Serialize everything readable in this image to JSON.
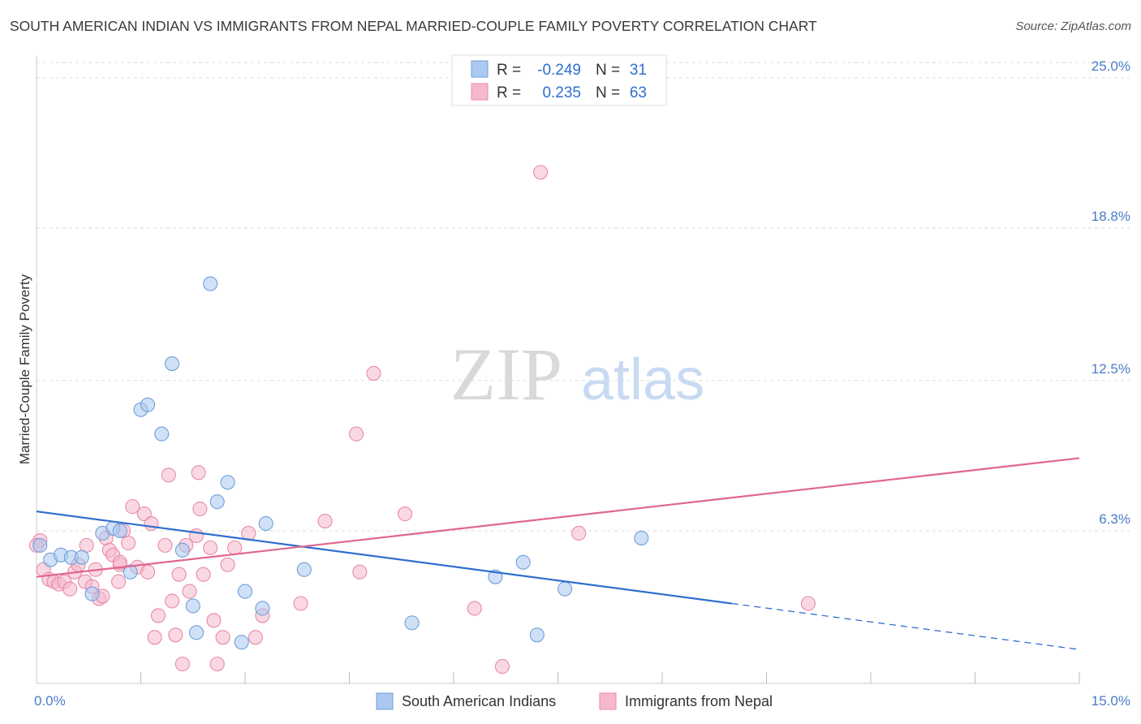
{
  "title": "SOUTH AMERICAN INDIAN VS IMMIGRANTS FROM NEPAL MARRIED-COUPLE FAMILY POVERTY CORRELATION CHART",
  "source": "Source: ZipAtlas.com",
  "watermark": {
    "zip": "ZIP",
    "atlas": "atlas"
  },
  "colors": {
    "blue_fill": "#aac8f0",
    "blue_stroke": "#6f9fd8",
    "blue_line": "#2f6fcf",
    "pink_fill": "#f6b8cc",
    "pink_stroke": "#e88aa8",
    "pink_line": "#e0668e",
    "tick_text": "#4a7cc7",
    "grid": "#dddddd"
  },
  "legend": {
    "rows": [
      {
        "r_label": "R =",
        "r_value": "-0.249",
        "n_label": "N =",
        "n_value": "31"
      },
      {
        "r_label": "R =",
        "r_value": "0.235",
        "n_label": "N =",
        "n_value": "63"
      }
    ]
  },
  "chart_data": {
    "type": "scatter",
    "title": "SOUTH AMERICAN INDIAN VS IMMIGRANTS FROM NEPAL MARRIED-COUPLE FAMILY POVERTY CORRELATION CHART",
    "xlabel": "",
    "ylabel": "Married-Couple Family Poverty",
    "xlim": [
      0,
      15
    ],
    "ylim": [
      0,
      25.9
    ],
    "x_tick_labels": {
      "left": "0.0%",
      "right": "15.0%"
    },
    "x_minor_ticks": [
      1.5,
      3.0,
      4.5,
      6.0,
      7.5,
      9.0,
      10.5,
      12.0,
      13.5,
      15.0
    ],
    "y_ticks": [
      6.3,
      12.5,
      18.8,
      25.0
    ],
    "y_tick_labels": [
      "6.3%",
      "12.5%",
      "18.8%",
      "25.0%"
    ],
    "grid": true,
    "legend_position": "bottom-center",
    "series": [
      {
        "name": "South American Indians",
        "color": "blue",
        "R": -0.249,
        "N": 31,
        "trend": {
          "x0": 0,
          "y0": 7.1,
          "x_solid_end": 10.0,
          "x1": 15,
          "y1": 1.4
        },
        "points": [
          [
            0.05,
            5.7
          ],
          [
            0.2,
            5.1
          ],
          [
            0.35,
            5.3
          ],
          [
            0.5,
            5.2
          ],
          [
            0.65,
            5.2
          ],
          [
            0.8,
            3.7
          ],
          [
            0.95,
            6.2
          ],
          [
            1.1,
            6.4
          ],
          [
            1.2,
            6.3
          ],
          [
            1.35,
            4.6
          ],
          [
            1.5,
            11.3
          ],
          [
            1.6,
            11.5
          ],
          [
            1.8,
            10.3
          ],
          [
            1.95,
            13.2
          ],
          [
            2.1,
            5.5
          ],
          [
            2.25,
            3.2
          ],
          [
            2.3,
            2.1
          ],
          [
            2.5,
            16.5
          ],
          [
            2.6,
            7.5
          ],
          [
            2.75,
            8.3
          ],
          [
            2.95,
            1.7
          ],
          [
            3.0,
            3.8
          ],
          [
            3.25,
            3.1
          ],
          [
            3.3,
            6.6
          ],
          [
            3.85,
            4.7
          ],
          [
            5.4,
            2.5
          ],
          [
            6.6,
            4.4
          ],
          [
            7.0,
            5.0
          ],
          [
            7.2,
            2.0
          ],
          [
            7.6,
            3.9
          ],
          [
            8.7,
            6.0
          ]
        ]
      },
      {
        "name": "Immigrants from Nepal",
        "color": "pink",
        "R": 0.235,
        "N": 63,
        "trend": {
          "x0": 0,
          "y0": 4.4,
          "x1": 15,
          "y1": 9.3
        },
        "points": [
          [
            0.05,
            5.9
          ],
          [
            0.1,
            4.7
          ],
          [
            0.18,
            4.3
          ],
          [
            0.25,
            4.2
          ],
          [
            0.32,
            4.1
          ],
          [
            0.4,
            4.2
          ],
          [
            0.48,
            3.9
          ],
          [
            0.55,
            4.6
          ],
          [
            0.6,
            4.9
          ],
          [
            0.7,
            4.2
          ],
          [
            0.72,
            5.7
          ],
          [
            0.8,
            4.0
          ],
          [
            0.85,
            4.7
          ],
          [
            0.9,
            3.5
          ],
          [
            0.95,
            3.6
          ],
          [
            1.0,
            6.0
          ],
          [
            1.05,
            5.5
          ],
          [
            1.1,
            5.3
          ],
          [
            1.18,
            4.2
          ],
          [
            1.2,
            4.9
          ],
          [
            1.25,
            6.3
          ],
          [
            1.32,
            5.8
          ],
          [
            1.38,
            7.3
          ],
          [
            1.45,
            4.8
          ],
          [
            1.55,
            7.0
          ],
          [
            1.6,
            4.6
          ],
          [
            1.65,
            6.6
          ],
          [
            1.7,
            1.9
          ],
          [
            1.75,
            2.8
          ],
          [
            1.85,
            5.7
          ],
          [
            1.9,
            8.6
          ],
          [
            1.95,
            3.4
          ],
          [
            2.0,
            2.0
          ],
          [
            2.05,
            4.5
          ],
          [
            2.1,
            0.8
          ],
          [
            2.15,
            5.7
          ],
          [
            2.2,
            3.8
          ],
          [
            2.3,
            6.1
          ],
          [
            2.33,
            8.7
          ],
          [
            2.35,
            7.2
          ],
          [
            2.5,
            5.6
          ],
          [
            2.55,
            2.6
          ],
          [
            2.6,
            0.8
          ],
          [
            2.68,
            1.9
          ],
          [
            2.75,
            4.9
          ],
          [
            2.85,
            5.6
          ],
          [
            3.05,
            6.2
          ],
          [
            3.15,
            1.9
          ],
          [
            3.25,
            2.8
          ],
          [
            3.8,
            3.3
          ],
          [
            4.15,
            6.7
          ],
          [
            4.6,
            10.3
          ],
          [
            4.65,
            4.6
          ],
          [
            4.85,
            12.8
          ],
          [
            5.3,
            7.0
          ],
          [
            6.3,
            3.1
          ],
          [
            6.7,
            0.7
          ],
          [
            7.25,
            21.1
          ],
          [
            7.8,
            6.2
          ],
          [
            11.1,
            3.3
          ],
          [
            0.0,
            5.7
          ],
          [
            1.2,
            5.0
          ],
          [
            2.4,
            4.5
          ]
        ]
      }
    ]
  },
  "bottom_legend": {
    "items": [
      {
        "label": "South American Indians"
      },
      {
        "label": "Immigrants from Nepal"
      }
    ]
  }
}
